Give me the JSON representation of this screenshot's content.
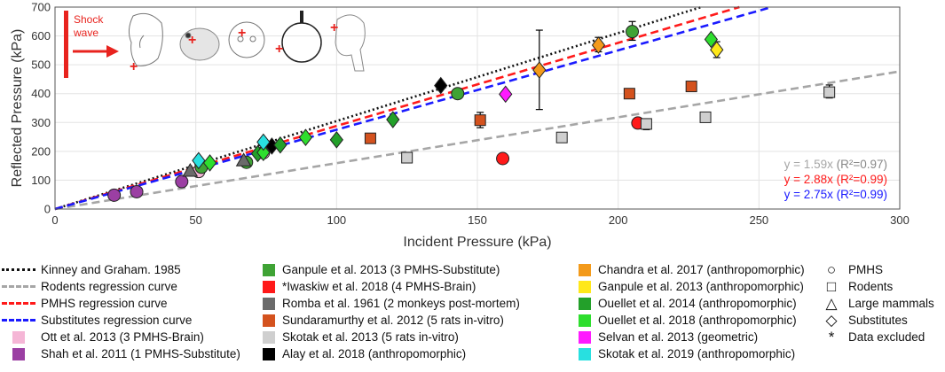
{
  "chart_data": {
    "type": "scatter",
    "xlabel": "Incident Pressure (kPa)",
    "ylabel": "Reflected Pressure (kPa)",
    "xlim": [
      0,
      300
    ],
    "ylim": [
      0,
      700
    ],
    "xticks": [
      "0",
      "50",
      "100",
      "150",
      "200",
      "250",
      "300"
    ],
    "yticks": [
      "0",
      "100",
      "200",
      "300",
      "400",
      "500",
      "600",
      "700"
    ],
    "grid": true,
    "inset_label": "Shock\nwave",
    "regression_lines": [
      {
        "name": "Kinney and Graham. 1985",
        "slope": 3.05,
        "color": "#111111",
        "dash": "dotted"
      },
      {
        "name": "Rodents regression curve",
        "slope": 1.59,
        "color": "#a6a6a6",
        "dash": "dashed",
        "equation": "y = 1.59x",
        "r2": "(R²=0.97)"
      },
      {
        "name": "PMHS regression curve",
        "slope": 2.88,
        "color": "#ff1a1a",
        "dash": "dashed",
        "equation": "y = 2.88x",
        "r2": "(R²=0.99)"
      },
      {
        "name": "Substitutes regression curve",
        "slope": 2.75,
        "color": "#1a1aff",
        "dash": "dashed",
        "equation": "y = 2.75x",
        "r2": "(R²=0.99)"
      }
    ],
    "series": [
      {
        "name": "Ott et al. 2013 (3 PMHS-Brain)",
        "color": "#f5b6d6",
        "marker": "circle",
        "points": [
          [
            51,
            130
          ],
          [
            74,
            195
          ]
        ]
      },
      {
        "name": "Shah et al. 2011 (1 PMHS-Substitute)",
        "color": "#9b3fa3",
        "marker": "circle",
        "points": [
          [
            21,
            48
          ],
          [
            29,
            60
          ],
          [
            45,
            95
          ]
        ]
      },
      {
        "name": "Ganpule et al. 2013 (3 PMHS-Substitute)",
        "color": "#3fa335",
        "marker": "circle",
        "points": [
          [
            52,
            145
          ],
          [
            68,
            162
          ],
          [
            143,
            400
          ],
          [
            205,
            615
          ]
        ]
      },
      {
        "name": "*Iwaskiw et al. 2018 (4 PMHS-Brain)",
        "color": "#ff1a1a",
        "marker": "circle",
        "points": [
          [
            159,
            175
          ],
          [
            207,
            298
          ]
        ]
      },
      {
        "name": "Romba et al. 1961 (2 monkeys post-mortem)",
        "color": "#6b6b6b",
        "marker": "triangle",
        "points": [
          [
            48,
            132
          ],
          [
            67,
            168
          ]
        ]
      },
      {
        "name": "Sundaramurthy et al. 2012 (5 rats in-vitro)",
        "color": "#d4521e",
        "marker": "square",
        "points": [
          [
            112,
            245
          ],
          [
            151,
            308
          ],
          [
            204,
            400
          ],
          [
            226,
            425
          ]
        ]
      },
      {
        "name": "Skotak et al. 2013 (5 rats in-vitro)",
        "color": "#cfcfcf",
        "marker": "square",
        "points": [
          [
            125,
            178
          ],
          [
            180,
            248
          ],
          [
            210,
            295
          ],
          [
            231,
            318
          ],
          [
            275,
            405
          ]
        ]
      },
      {
        "name": "Alay et al. 2018 (anthropomorphic)",
        "color": "#000000",
        "marker": "diamond",
        "points": [
          [
            77,
            218
          ],
          [
            137,
            428
          ]
        ]
      },
      {
        "name": "Chandra et al. 2017 (anthropomorphic)",
        "color": "#f39a1b",
        "marker": "diamond",
        "points": [
          [
            172,
            482
          ],
          [
            193,
            568
          ]
        ]
      },
      {
        "name": "Ganpule et al. 2013 (anthropomorphic)",
        "color": "#ffe81a",
        "marker": "diamond",
        "points": [
          [
            235,
            552
          ]
        ]
      },
      {
        "name": "Ouellet et al. 2014 (anthropomorphic)",
        "color": "#23a02a",
        "marker": "diamond",
        "points": [
          [
            72,
            192
          ],
          [
            80,
            222
          ],
          [
            100,
            240
          ],
          [
            120,
            310
          ]
        ]
      },
      {
        "name": "Ouellet et al. 2018 (anthropomorphic)",
        "color": "#2ede2e",
        "marker": "diamond",
        "points": [
          [
            55,
            160
          ],
          [
            74,
            196
          ],
          [
            89,
            248
          ],
          [
            233,
            588
          ]
        ]
      },
      {
        "name": "Selvan et al. 2013 (geometric)",
        "color": "#ff1aff",
        "marker": "diamond",
        "points": [
          [
            160,
            398
          ]
        ]
      },
      {
        "name": "Skotak et al. 2019 (anthropomorphic)",
        "color": "#28e0e0",
        "marker": "diamond",
        "points": [
          [
            51,
            168
          ],
          [
            74,
            232
          ]
        ]
      }
    ],
    "error_bars": [
      {
        "x": 172,
        "low": 345,
        "high": 620,
        "color": "#000"
      },
      {
        "x": 205,
        "low": 585,
        "high": 650,
        "color": "#000"
      },
      {
        "x": 193,
        "low": 545,
        "high": 595,
        "color": "#000"
      },
      {
        "x": 235,
        "low": 525,
        "high": 580,
        "color": "#000"
      },
      {
        "x": 151,
        "low": 282,
        "high": 335,
        "color": "#000"
      },
      {
        "x": 275,
        "low": 385,
        "high": 430,
        "color": "#000"
      },
      {
        "x": 231,
        "low": 305,
        "high": 332,
        "color": "#000"
      },
      {
        "x": 210,
        "low": 275,
        "high": 312,
        "color": "#000"
      },
      {
        "x": 180,
        "low": 232,
        "high": 262,
        "color": "#000"
      },
      {
        "x": 125,
        "low": 160,
        "high": 195,
        "color": "#000"
      }
    ]
  },
  "legend": {
    "col1": [
      {
        "label": "Kinney and Graham. 1985",
        "kind": "line",
        "color": "#111111",
        "dash": "dotted"
      },
      {
        "label": "Rodents regression curve",
        "kind": "line",
        "color": "#a6a6a6",
        "dash": "dashed"
      },
      {
        "label": "PMHS regression curve",
        "kind": "line",
        "color": "#ff1a1a",
        "dash": "dashed"
      },
      {
        "label": "Substitutes regression curve",
        "kind": "line",
        "color": "#1a1aff",
        "dash": "dashed"
      },
      {
        "label": "Ott et al. 2013 (3 PMHS-Brain)",
        "kind": "swatch",
        "color": "#f5b6d6"
      },
      {
        "label": "Shah et al. 2011 (1 PMHS-Substitute)",
        "kind": "swatch",
        "color": "#9b3fa3"
      }
    ],
    "col2": [
      {
        "label": "Ganpule et al. 2013 (3 PMHS-Substitute)",
        "color": "#3fa335"
      },
      {
        "label": "*Iwaskiw et al. 2018 (4 PMHS-Brain)",
        "color": "#ff1a1a"
      },
      {
        "label": "Romba et al. 1961 (2 monkeys post-mortem)",
        "color": "#6b6b6b"
      },
      {
        "label": "Sundaramurthy et al. 2012 (5 rats in-vitro)",
        "color": "#d4521e"
      },
      {
        "label": "Skotak et al. 2013 (5 rats in-vitro)",
        "color": "#cfcfcf"
      },
      {
        "label": "Alay et al. 2018 (anthropomorphic)",
        "color": "#000000"
      }
    ],
    "col3": [
      {
        "label": "Chandra et al. 2017 (anthropomorphic)",
        "color": "#f39a1b"
      },
      {
        "label": "Ganpule et al. 2013 (anthropomorphic)",
        "color": "#ffe81a"
      },
      {
        "label": "Ouellet et al. 2014 (anthropomorphic)",
        "color": "#23a02a"
      },
      {
        "label": "Ouellet et al. 2018 (anthropomorphic)",
        "color": "#2ede2e"
      },
      {
        "label": "Selvan et al. 2013 (geometric)",
        "color": "#ff1aff"
      },
      {
        "label": "Skotak et al. 2019 (anthropomorphic)",
        "color": "#28e0e0"
      }
    ],
    "col4": [
      {
        "label": "PMHS",
        "symbol": "○"
      },
      {
        "label": "Rodents",
        "symbol": "□"
      },
      {
        "label": "Large mammals",
        "symbol": "△"
      },
      {
        "label": "Substitutes",
        "symbol": "◇"
      },
      {
        "label": "Data excluded",
        "symbol": "*"
      }
    ]
  }
}
